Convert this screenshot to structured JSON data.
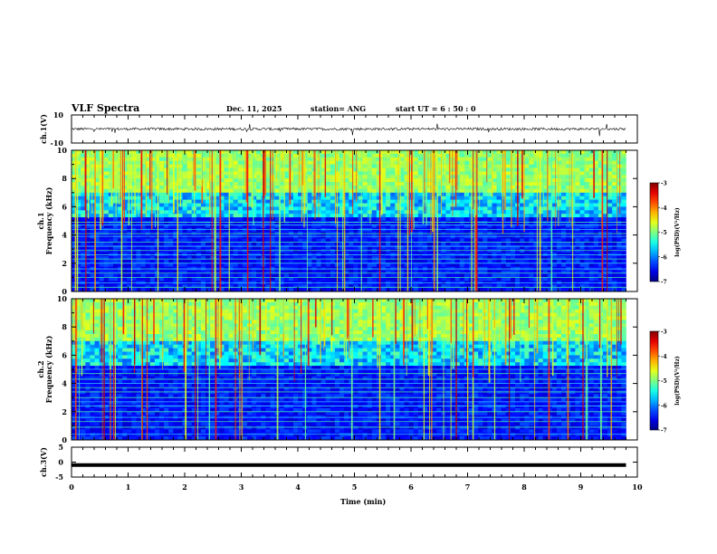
{
  "header": {
    "title": "VLF Spectra",
    "date": "Dec. 11, 2025",
    "station": "station= ANG",
    "start_time": "start  UT =   6 : 50 : 0"
  },
  "chart_data": [
    {
      "id": "ch1_waveform",
      "type": "line",
      "ylabel": "ch.1(V)",
      "ylim": [
        -10,
        10
      ],
      "yticks": [
        "10",
        "-10"
      ],
      "xlim": [
        0,
        10
      ],
      "description_values": {
        "baseline": 0,
        "noise_amplitude": 1.5,
        "data_end_min": 9.8
      }
    },
    {
      "id": "ch1_spectrogram",
      "type": "heatmap",
      "ylabel_lines": [
        "ch.1",
        "Frequency (kHz)"
      ],
      "ylim": [
        0,
        10
      ],
      "yticks": [
        "0",
        "2",
        "4",
        "6",
        "8",
        "10"
      ],
      "xlim": [
        0,
        10
      ],
      "data_end_min": 9.8,
      "colorbar": {
        "label": "log(PSD)(V²/Hz)",
        "range": [
          -7,
          -3
        ],
        "ticks": [
          "-3",
          "-4",
          "-5",
          "-6",
          "-7"
        ]
      },
      "narrowband_lines_khz": [
        0.3,
        0.6,
        1.0,
        1.3,
        1.6,
        2.0,
        2.3,
        2.6,
        2.9,
        3.2,
        3.5,
        3.9,
        4.1,
        4.4,
        4.7,
        4.9
      ]
    },
    {
      "id": "ch2_spectrogram",
      "type": "heatmap",
      "ylabel_lines": [
        "ch.2",
        "Frequency (kHz)"
      ],
      "ylim": [
        0,
        10
      ],
      "yticks": [
        "0",
        "2",
        "4",
        "6",
        "8",
        "10"
      ],
      "xlim": [
        0,
        10
      ],
      "data_end_min": 9.8,
      "colorbar": {
        "label": "log(PSD)(V²/Hz)",
        "range": [
          -7,
          -3
        ],
        "ticks": [
          "-3",
          "-4",
          "-5",
          "-6",
          "-7"
        ]
      },
      "narrowband_lines_khz": [
        0.4,
        0.9,
        1.3,
        1.6,
        2.0,
        2.4,
        2.7,
        3.0,
        3.4,
        3.7,
        4.0,
        4.3,
        4.7,
        5.0
      ]
    },
    {
      "id": "ch3_waveform",
      "type": "line",
      "ylabel": "ch.3(V)",
      "ylim": [
        -5,
        5
      ],
      "yticks": [
        "5",
        "0",
        "-5"
      ],
      "xlim": [
        0,
        10
      ],
      "description_values": {
        "constant_level": -1,
        "data_end_min": 9.8
      }
    }
  ],
  "xaxis": {
    "label": "Time  (min)",
    "ticks": [
      "0",
      "1",
      "2",
      "3",
      "4",
      "5",
      "6",
      "7",
      "8",
      "9",
      "10"
    ]
  }
}
